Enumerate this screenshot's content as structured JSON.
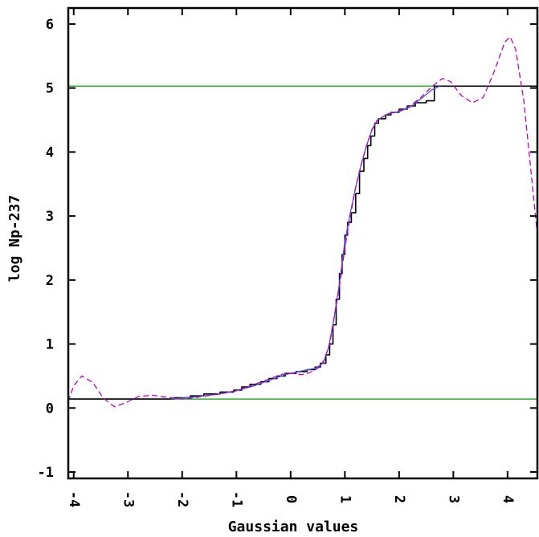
{
  "chart_data": {
    "type": "line",
    "title": "",
    "xlabel": "Gaussian values",
    "ylabel": "log Np-237",
    "xlim": [
      -4.1,
      4.55
    ],
    "ylim": [
      -1.1,
      6.25
    ],
    "grid": false,
    "legend": "none",
    "xticks": [
      {
        "value": -4,
        "label": "-4"
      },
      {
        "value": -3,
        "label": "-3"
      },
      {
        "value": -2,
        "label": "-2"
      },
      {
        "value": -1,
        "label": "-1"
      },
      {
        "value": 0,
        "label": "0"
      },
      {
        "value": 1,
        "label": "1"
      },
      {
        "value": 2,
        "label": "2"
      },
      {
        "value": 3,
        "label": "3"
      },
      {
        "value": 4,
        "label": "4"
      }
    ],
    "yticks": [
      {
        "value": -1,
        "label": "-1"
      },
      {
        "value": 0,
        "label": "0"
      },
      {
        "value": 1,
        "label": "1"
      },
      {
        "value": 2,
        "label": "2"
      },
      {
        "value": 3,
        "label": "3"
      },
      {
        "value": 4,
        "label": "4"
      },
      {
        "value": 5,
        "label": "5"
      },
      {
        "value": 6,
        "label": "6"
      }
    ],
    "hlines": [
      {
        "y": 5.03,
        "color": "#00a000"
      },
      {
        "y": 0.14,
        "color": "#00a000"
      }
    ],
    "series": [
      {
        "style": "step",
        "color": "#000000",
        "points": [
          [
            -4.1,
            0.14
          ],
          [
            -2.15,
            0.14
          ],
          [
            -2.15,
            0.16
          ],
          [
            -1.85,
            0.16
          ],
          [
            -1.85,
            0.19
          ],
          [
            -1.6,
            0.19
          ],
          [
            -1.6,
            0.22
          ],
          [
            -1.3,
            0.22
          ],
          [
            -1.3,
            0.25
          ],
          [
            -1.05,
            0.25
          ],
          [
            -1.05,
            0.28
          ],
          [
            -0.9,
            0.28
          ],
          [
            -0.9,
            0.33
          ],
          [
            -0.75,
            0.33
          ],
          [
            -0.75,
            0.37
          ],
          [
            -0.55,
            0.37
          ],
          [
            -0.55,
            0.41
          ],
          [
            -0.4,
            0.41
          ],
          [
            -0.4,
            0.46
          ],
          [
            -0.25,
            0.46
          ],
          [
            -0.25,
            0.5
          ],
          [
            -0.1,
            0.5
          ],
          [
            -0.1,
            0.54
          ],
          [
            0.1,
            0.54
          ],
          [
            0.1,
            0.57
          ],
          [
            0.3,
            0.57
          ],
          [
            0.3,
            0.6
          ],
          [
            0.45,
            0.6
          ],
          [
            0.45,
            0.64
          ],
          [
            0.55,
            0.64
          ],
          [
            0.55,
            0.7
          ],
          [
            0.65,
            0.7
          ],
          [
            0.65,
            0.83
          ],
          [
            0.72,
            0.83
          ],
          [
            0.72,
            1.0
          ],
          [
            0.78,
            1.0
          ],
          [
            0.78,
            1.3
          ],
          [
            0.84,
            1.3
          ],
          [
            0.84,
            1.7
          ],
          [
            0.9,
            1.7
          ],
          [
            0.9,
            2.1
          ],
          [
            0.95,
            2.1
          ],
          [
            0.95,
            2.4
          ],
          [
            1.0,
            2.4
          ],
          [
            1.0,
            2.7
          ],
          [
            1.05,
            2.7
          ],
          [
            1.05,
            2.9
          ],
          [
            1.12,
            2.9
          ],
          [
            1.12,
            3.05
          ],
          [
            1.2,
            3.05
          ],
          [
            1.2,
            3.35
          ],
          [
            1.27,
            3.35
          ],
          [
            1.27,
            3.7
          ],
          [
            1.35,
            3.7
          ],
          [
            1.35,
            3.9
          ],
          [
            1.42,
            3.9
          ],
          [
            1.42,
            4.1
          ],
          [
            1.48,
            4.1
          ],
          [
            1.48,
            4.25
          ],
          [
            1.55,
            4.25
          ],
          [
            1.55,
            4.45
          ],
          [
            1.62,
            4.45
          ],
          [
            1.62,
            4.52
          ],
          [
            1.75,
            4.52
          ],
          [
            1.75,
            4.58
          ],
          [
            1.85,
            4.58
          ],
          [
            1.85,
            4.62
          ],
          [
            2.0,
            4.62
          ],
          [
            2.0,
            4.67
          ],
          [
            2.15,
            4.67
          ],
          [
            2.15,
            4.72
          ],
          [
            2.3,
            4.72
          ],
          [
            2.3,
            4.77
          ],
          [
            2.5,
            4.77
          ],
          [
            2.5,
            4.8
          ],
          [
            2.65,
            4.8
          ],
          [
            2.65,
            5.03
          ],
          [
            4.55,
            5.03
          ]
        ]
      },
      {
        "style": "line",
        "color": "#4a55e0",
        "points": [
          [
            -2.2,
            0.14
          ],
          [
            -1.8,
            0.17
          ],
          [
            -1.4,
            0.21
          ],
          [
            -1.0,
            0.27
          ],
          [
            -0.7,
            0.34
          ],
          [
            -0.4,
            0.43
          ],
          [
            -0.1,
            0.52
          ],
          [
            0.2,
            0.58
          ],
          [
            0.45,
            0.62
          ],
          [
            0.6,
            0.7
          ],
          [
            0.7,
            0.95
          ],
          [
            0.8,
            1.4
          ],
          [
            0.9,
            1.95
          ],
          [
            1.0,
            2.6
          ],
          [
            1.1,
            3.05
          ],
          [
            1.2,
            3.45
          ],
          [
            1.3,
            3.8
          ],
          [
            1.4,
            4.1
          ],
          [
            1.5,
            4.35
          ],
          [
            1.6,
            4.5
          ],
          [
            1.8,
            4.6
          ],
          [
            2.0,
            4.63
          ],
          [
            2.2,
            4.7
          ],
          [
            2.4,
            4.83
          ],
          [
            2.6,
            4.97
          ],
          [
            2.75,
            5.03
          ]
        ]
      },
      {
        "style": "dashed",
        "color": "#c000c0",
        "points": [
          [
            -4.1,
            0.1
          ],
          [
            -4.0,
            0.35
          ],
          [
            -3.85,
            0.5
          ],
          [
            -3.65,
            0.4
          ],
          [
            -3.45,
            0.15
          ],
          [
            -3.25,
            0.02
          ],
          [
            -3.05,
            0.08
          ],
          [
            -2.8,
            0.18
          ],
          [
            -2.55,
            0.2
          ],
          [
            -2.3,
            0.17
          ],
          [
            -2.0,
            0.14
          ],
          [
            -1.7,
            0.17
          ],
          [
            -1.3,
            0.22
          ],
          [
            -1.0,
            0.27
          ],
          [
            -0.7,
            0.36
          ],
          [
            -0.4,
            0.45
          ],
          [
            -0.15,
            0.53
          ],
          [
            0.05,
            0.54
          ],
          [
            0.2,
            0.52
          ],
          [
            0.35,
            0.55
          ],
          [
            0.5,
            0.62
          ],
          [
            0.62,
            0.75
          ],
          [
            0.72,
            1.0
          ],
          [
            0.8,
            1.4
          ],
          [
            0.9,
            1.9
          ],
          [
            1.0,
            2.5
          ],
          [
            1.1,
            3.0
          ],
          [
            1.2,
            3.45
          ],
          [
            1.3,
            3.8
          ],
          [
            1.4,
            4.1
          ],
          [
            1.5,
            4.35
          ],
          [
            1.6,
            4.5
          ],
          [
            1.8,
            4.6
          ],
          [
            2.0,
            4.64
          ],
          [
            2.2,
            4.72
          ],
          [
            2.4,
            4.85
          ],
          [
            2.6,
            5.02
          ],
          [
            2.8,
            5.15
          ],
          [
            2.95,
            5.1
          ],
          [
            3.15,
            4.88
          ],
          [
            3.35,
            4.77
          ],
          [
            3.55,
            4.85
          ],
          [
            3.75,
            5.25
          ],
          [
            3.95,
            5.72
          ],
          [
            4.05,
            5.8
          ],
          [
            4.15,
            5.6
          ],
          [
            4.3,
            4.8
          ],
          [
            4.42,
            3.8
          ],
          [
            4.55,
            2.7
          ]
        ]
      }
    ]
  }
}
